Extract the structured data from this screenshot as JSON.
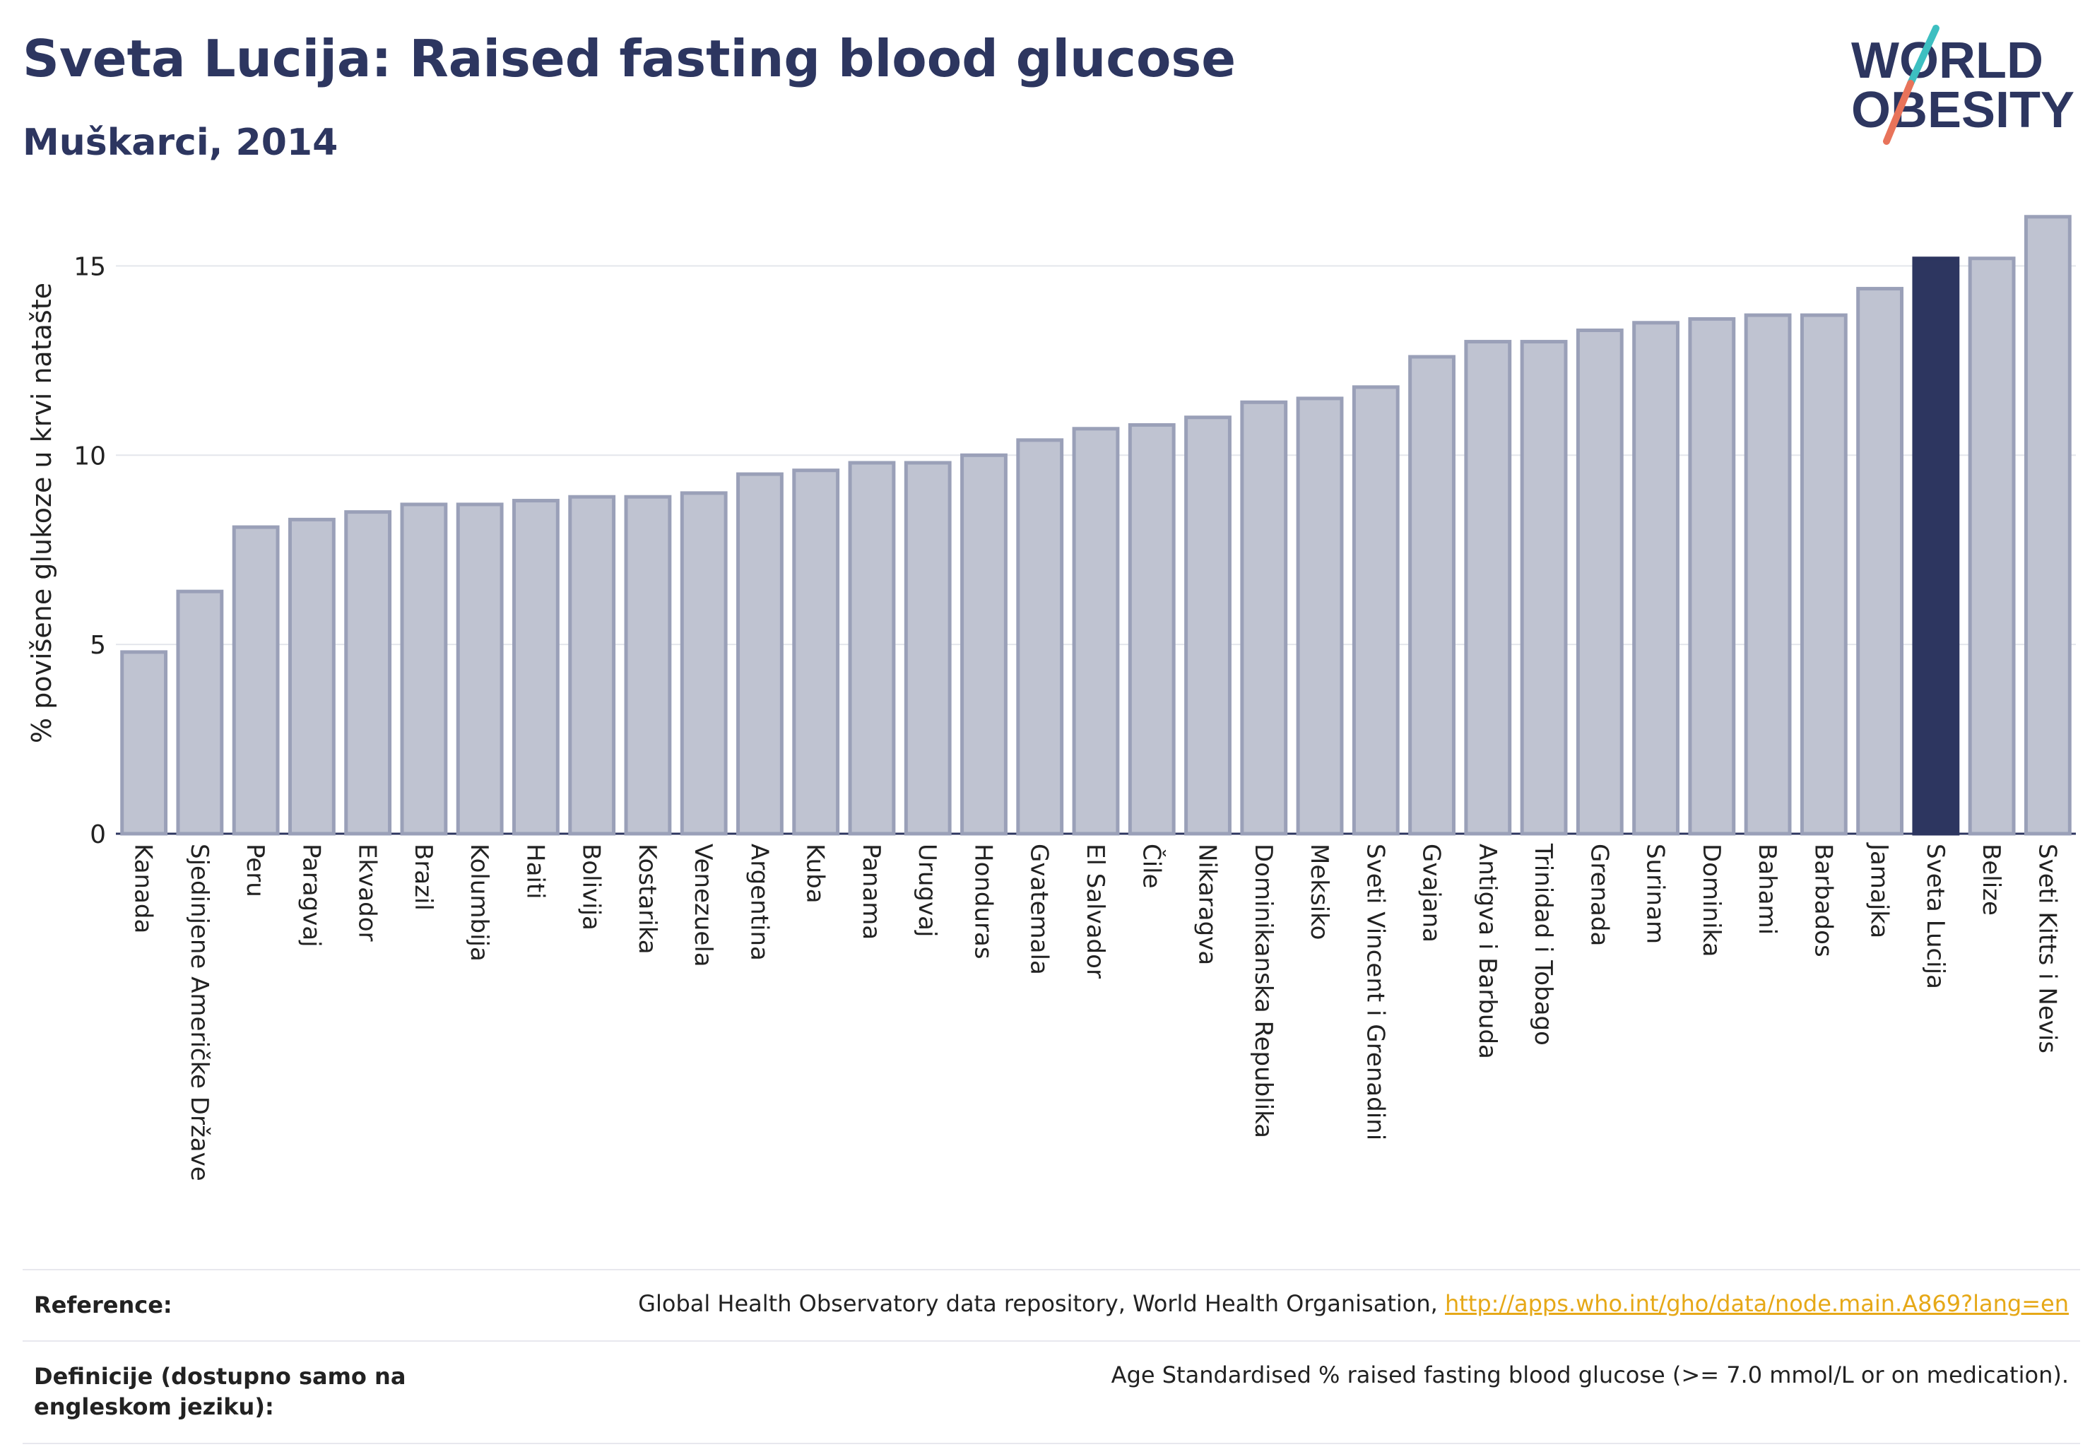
{
  "header": {
    "title": "Sveta Lucija: Raised fasting blood glucose",
    "subtitle": "Muškarci, 2014"
  },
  "logo": {
    "line1": "WORLD",
    "line2": "OBESITY"
  },
  "colors": {
    "bar": "#bfc3d1",
    "bar_stroke": "#9aa0b8",
    "highlight": "#2d3660",
    "accent_teal": "#3dbfc1",
    "accent_red": "#e8735a"
  },
  "chart_data": {
    "type": "bar",
    "ylabel": "% povišene glukoze u krvi natašte",
    "ylim": [
      0,
      16.8
    ],
    "yticks": [
      0,
      5,
      10,
      15
    ],
    "grid": true,
    "highlight": "Sveta Lucija",
    "categories": [
      "Kanada",
      "Sjedinjene Američke Države",
      "Peru",
      "Paragvaj",
      "Ekvador",
      "Brazil",
      "Kolumbija",
      "Haiti",
      "Bolivija",
      "Kostarika",
      "Venezuela",
      "Argentina",
      "Kuba",
      "Panama",
      "Urugvaj",
      "Honduras",
      "Gvatemala",
      "El Salvador",
      "Čile",
      "Nikaragva",
      "Dominikanska Republika",
      "Meksiko",
      "Sveti Vincent i Grenadini",
      "Gvajana",
      "Antigva i Barbuda",
      "Trinidad i Tobago",
      "Grenada",
      "Surinam",
      "Dominika",
      "Bahami",
      "Barbados",
      "Jamajka",
      "Sveta Lucija",
      "Belize",
      "Sveti Kitts i Nevis"
    ],
    "values": [
      4.8,
      6.4,
      8.1,
      8.3,
      8.5,
      8.7,
      8.7,
      8.8,
      8.9,
      8.9,
      9.0,
      9.5,
      9.6,
      9.8,
      9.8,
      10.0,
      10.4,
      10.7,
      10.8,
      11.0,
      11.4,
      11.5,
      11.8,
      12.6,
      13.0,
      13.0,
      13.3,
      13.5,
      13.6,
      13.7,
      13.7,
      14.4,
      15.2,
      15.2,
      16.3
    ]
  },
  "footer": {
    "reference_label": "Reference:",
    "reference_text": "Global Health Observatory data repository, World Health Organisation, ",
    "reference_link": "http://apps.who.int/gho/data/node.main.A869?lang=en",
    "definition_label": "Definicije (dostupno samo na engleskom jeziku):",
    "definition_text": "Age Standardised % raised fasting blood glucose (>= 7.0 mmol/L or on medication)."
  }
}
